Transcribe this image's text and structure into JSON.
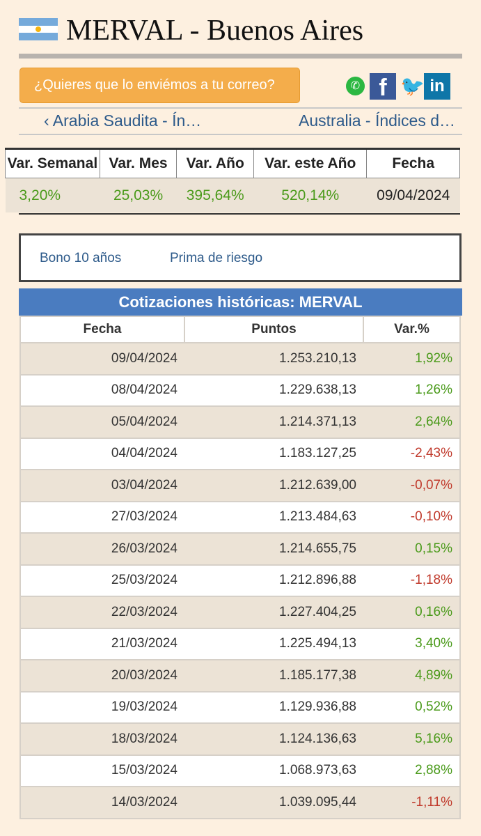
{
  "header": {
    "title": "MERVAL - Buenos Aires"
  },
  "toolbar": {
    "mail_label": "¿Quieres que lo enviémos a tu correo?",
    "share_icons": [
      "whatsapp-icon",
      "facebook-icon",
      "twitter-icon",
      "linkedin-icon"
    ]
  },
  "nav": {
    "prev_label": "‹ Arabia Saudita - Ín…",
    "next_label": "Australia - Índices d…"
  },
  "summary": {
    "headers": [
      "Var. Semanal",
      "Var. Mes",
      "Var. Año",
      "Var. este Año",
      "Fecha"
    ],
    "values": [
      "3,20%",
      "25,03%",
      "395,64%",
      "520,14%",
      "09/04/2024"
    ]
  },
  "links": {
    "bond": "Bono 10 años",
    "risk": "Prima de riesgo"
  },
  "history": {
    "title": "Cotizaciones históricas: MERVAL",
    "headers": [
      "Fecha",
      "Puntos",
      "Var.%"
    ],
    "rows": [
      {
        "date": "09/04/2024",
        "points": "1.253.210,13",
        "var": "1,92%"
      },
      {
        "date": "08/04/2024",
        "points": "1.229.638,13",
        "var": "1,26%"
      },
      {
        "date": "05/04/2024",
        "points": "1.214.371,13",
        "var": "2,64%"
      },
      {
        "date": "04/04/2024",
        "points": "1.183.127,25",
        "var": "-2,43%"
      },
      {
        "date": "03/04/2024",
        "points": "1.212.639,00",
        "var": "-0,07%"
      },
      {
        "date": "27/03/2024",
        "points": "1.213.484,63",
        "var": "-0,10%"
      },
      {
        "date": "26/03/2024",
        "points": "1.214.655,75",
        "var": "0,15%"
      },
      {
        "date": "25/03/2024",
        "points": "1.212.896,88",
        "var": "-1,18%"
      },
      {
        "date": "22/03/2024",
        "points": "1.227.404,25",
        "var": "0,16%"
      },
      {
        "date": "21/03/2024",
        "points": "1.225.494,13",
        "var": "3,40%"
      },
      {
        "date": "20/03/2024",
        "points": "1.185.177,38",
        "var": "4,89%"
      },
      {
        "date": "19/03/2024",
        "points": "1.129.936,88",
        "var": "0,52%"
      },
      {
        "date": "18/03/2024",
        "points": "1.124.136,63",
        "var": "5,16%"
      },
      {
        "date": "15/03/2024",
        "points": "1.068.973,63",
        "var": "2,88%"
      },
      {
        "date": "14/03/2024",
        "points": "1.039.095,44",
        "var": "-1,11%"
      }
    ]
  },
  "colors": {
    "positive": "#4a9a1a",
    "negative": "#c0392b",
    "accent": "#4a7cc0",
    "button": "#f4ad4b"
  }
}
